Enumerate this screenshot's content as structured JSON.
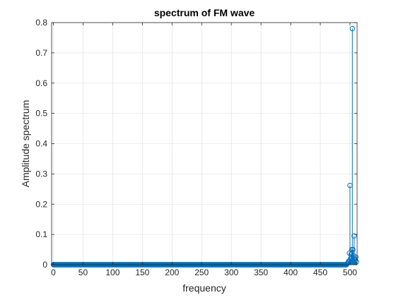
{
  "chart_data": {
    "type": "stem",
    "title": "spectrum of FM wave",
    "xlabel": "frequency",
    "ylabel": "Amplitude spectrum",
    "xlim": [
      -3,
      512
    ],
    "ylim": [
      0,
      0.8
    ],
    "xticks": [
      0,
      50,
      100,
      150,
      200,
      250,
      300,
      350,
      400,
      450,
      500
    ],
    "yticks": [
      0,
      0.1,
      0.2,
      0.3,
      0.4,
      0.5,
      0.6,
      0.7,
      0.8
    ],
    "grid": true,
    "colors": {
      "series": "#0072bd",
      "grid": "#dcdcdc",
      "axis": "#262626"
    },
    "series": [
      {
        "x": [
          495,
          496,
          497,
          498,
          499,
          500,
          501,
          502,
          503,
          504,
          505,
          506,
          507,
          508,
          509,
          510,
          511
        ],
        "values": [
          0.003,
          0.005,
          0.008,
          0.012,
          0.038,
          0.262,
          0.02,
          0.035,
          0.05,
          0.78,
          0.05,
          0.03,
          0.095,
          0.02,
          0.015,
          0.025,
          0.01
        ],
        "baseline_range": [
          0,
          494
        ],
        "baseline_value": 0
      }
    ]
  }
}
